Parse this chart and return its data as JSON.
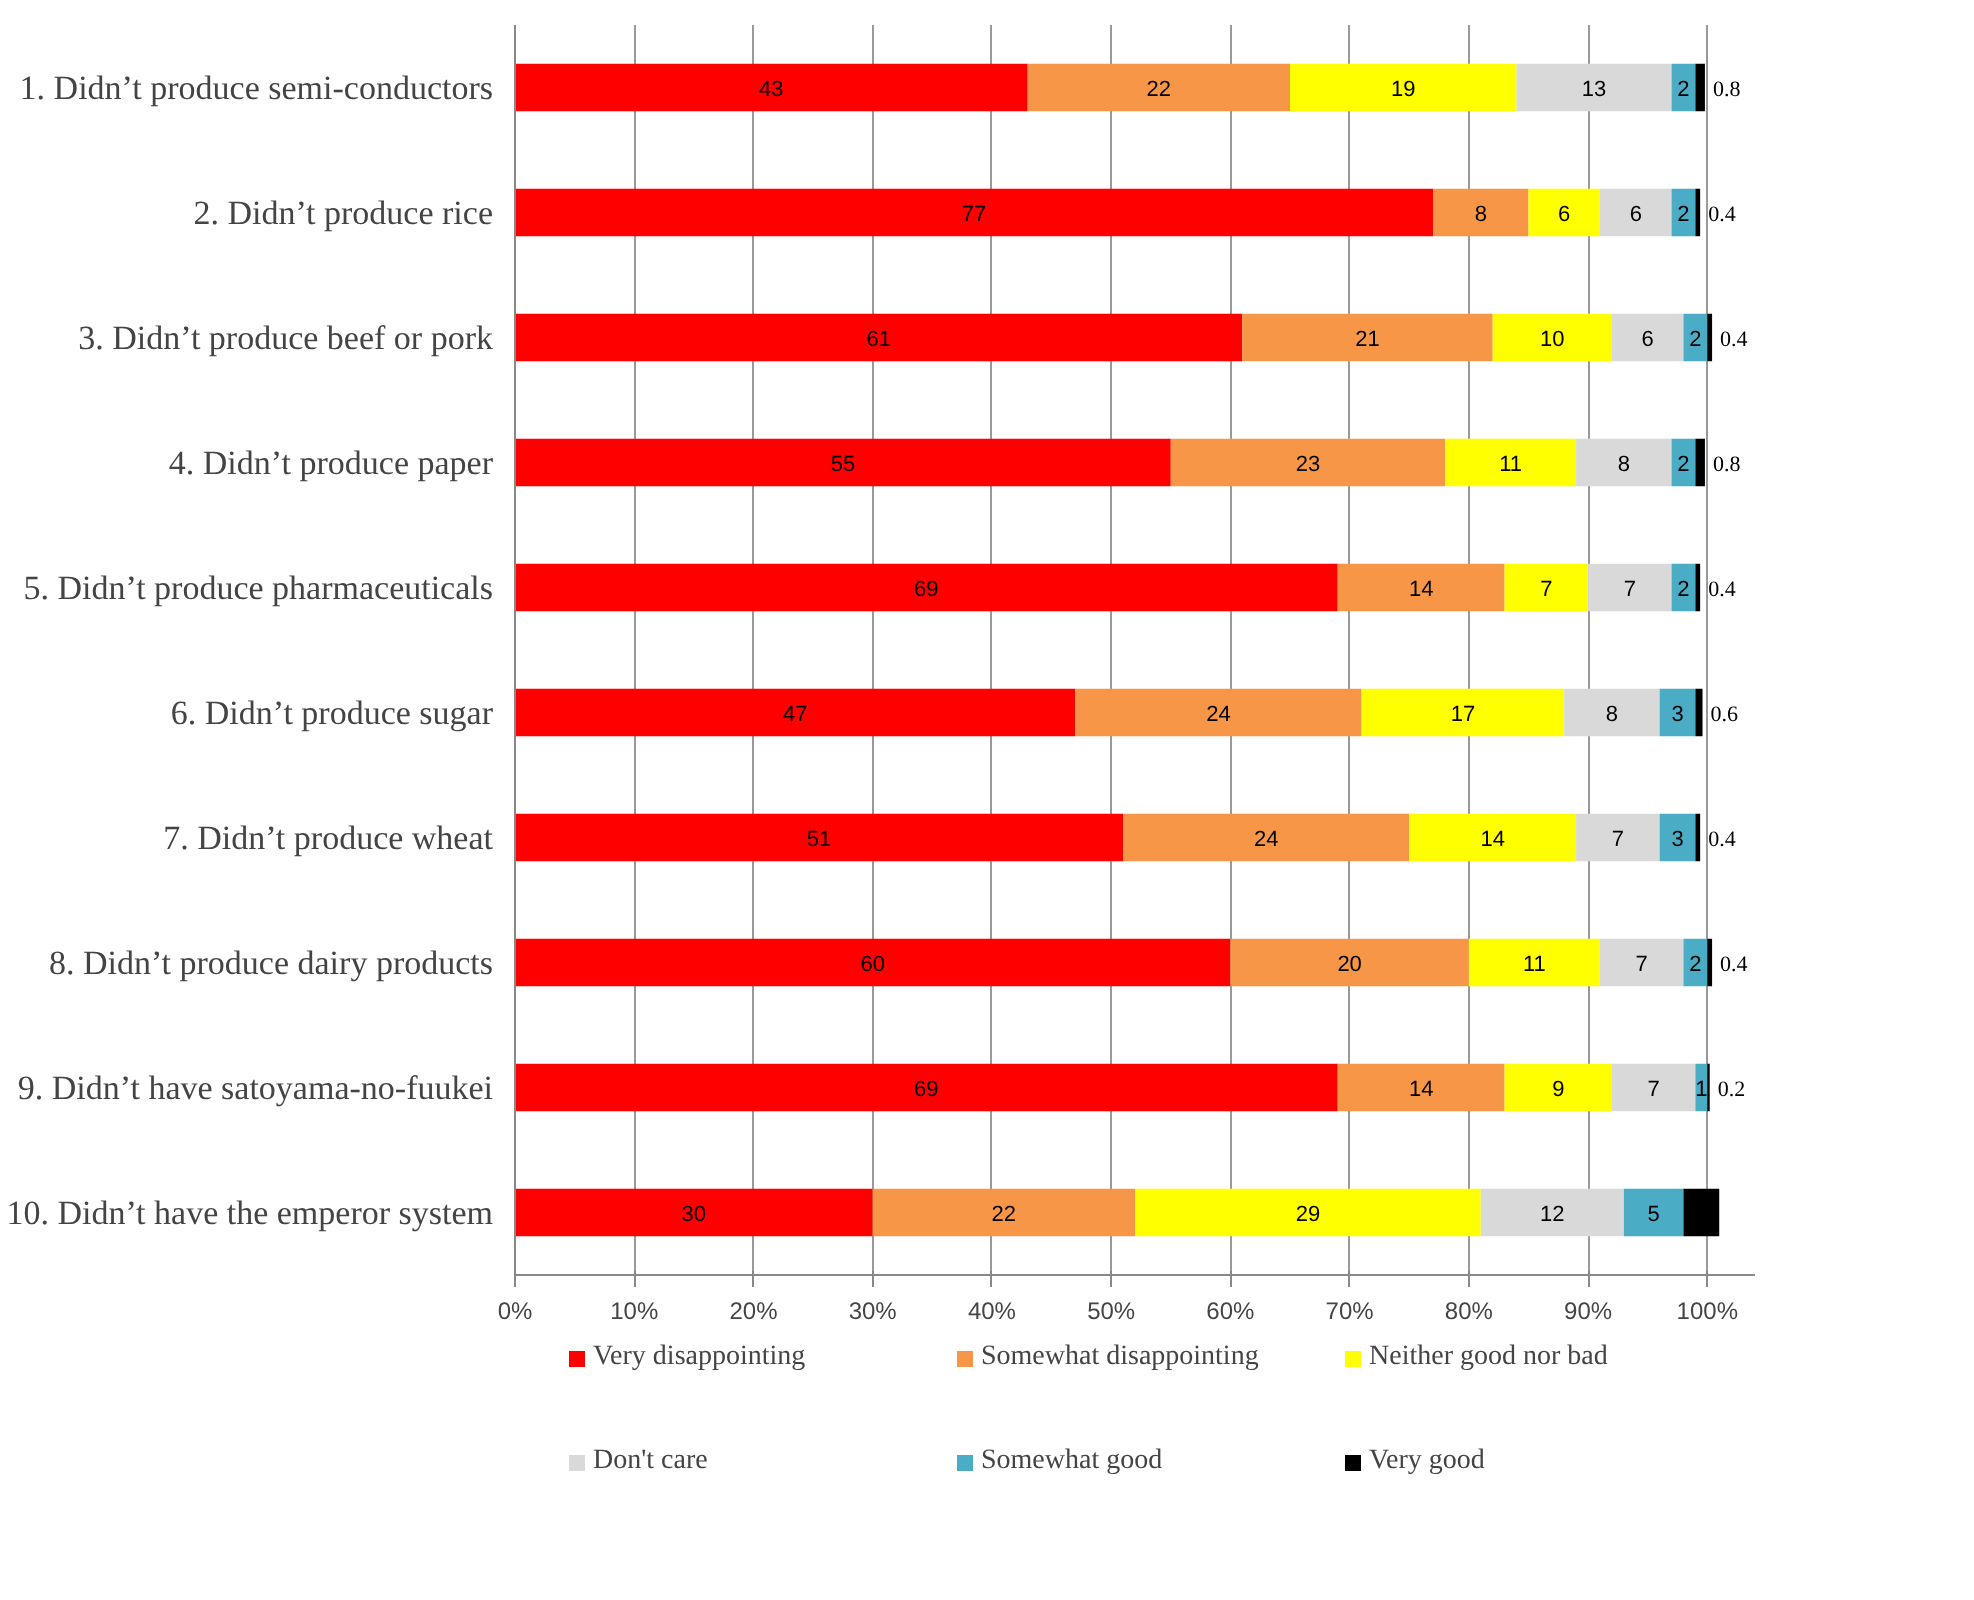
{
  "chart_data": {
    "type": "bar",
    "orientation": "horizontal",
    "stacked": true,
    "categories": [
      "1. Didn’t produce semi-conductors",
      "2. Didn’t produce rice",
      "3. Didn’t produce beef or pork",
      "4. Didn’t produce paper",
      "5. Didn’t produce pharmaceuticals",
      "6. Didn’t produce sugar",
      "7. Didn’t produce wheat",
      "8. Didn’t produce dairy products",
      "9. Didn’t have satoyama-no-fuukei",
      "10. Didn’t have the emperor system"
    ],
    "series": [
      {
        "name": "Very disappointing",
        "color": "#ff0000",
        "values": [
          43,
          77,
          61,
          55,
          69,
          47,
          51,
          60,
          69,
          30
        ],
        "value_labels": [
          "43",
          "77",
          "61",
          "55",
          "69",
          "47",
          "51",
          "60",
          "69",
          "30"
        ]
      },
      {
        "name": "Somewhat disappointing",
        "color": "#f79646",
        "values": [
          22,
          8,
          21,
          23,
          14,
          24,
          24,
          20,
          14,
          22
        ],
        "value_labels": [
          "22",
          "8",
          "21",
          "23",
          "14",
          "24",
          "24",
          "20",
          "14",
          "22"
        ]
      },
      {
        "name": "Neither good nor bad",
        "color": "#ffff00",
        "values": [
          19,
          6,
          10,
          11,
          7,
          17,
          14,
          11,
          9,
          29
        ],
        "value_labels": [
          "19",
          "6",
          "10",
          "11",
          "7",
          "17",
          "14",
          "11",
          "9",
          "29"
        ]
      },
      {
        "name": "Don't care",
        "color": "#d9d9d9",
        "values": [
          13,
          6,
          6,
          8,
          7,
          8,
          7,
          7,
          7,
          12
        ],
        "value_labels": [
          "13",
          "6",
          "6",
          "8",
          "7",
          "8",
          "7",
          "7",
          "7",
          "12"
        ]
      },
      {
        "name": "Somewhat good",
        "color": "#4bacc6",
        "values": [
          2,
          2,
          2,
          2,
          2,
          3,
          3,
          2,
          1,
          5
        ],
        "value_labels": [
          "2",
          "2",
          "2",
          "2",
          "2",
          "3",
          "3",
          "2",
          "1",
          "5"
        ]
      },
      {
        "name": "Very good",
        "color": "#000000",
        "values": [
          0.8,
          0.4,
          0.4,
          0.8,
          0.4,
          0.6,
          0.4,
          0.4,
          0.2,
          3
        ],
        "value_labels": [
          "0.8",
          "0.4",
          "0.4",
          "0.8",
          "0.4",
          "0.6",
          "0.4",
          "0.4",
          "0.2",
          null
        ]
      }
    ],
    "xlim": [
      0,
      104
    ],
    "xticks": [
      {
        "value": 0,
        "label": "0%"
      },
      {
        "value": 10,
        "label": "10%"
      },
      {
        "value": 20,
        "label": "20%"
      },
      {
        "value": 30,
        "label": "30%"
      },
      {
        "value": 40,
        "label": "40%"
      },
      {
        "value": 50,
        "label": "50%"
      },
      {
        "value": 60,
        "label": "60%"
      },
      {
        "value": 70,
        "label": "70%"
      },
      {
        "value": 80,
        "label": "80%"
      },
      {
        "value": 90,
        "label": "90%"
      },
      {
        "value": 100,
        "label": "100%"
      }
    ],
    "grid": "x",
    "legend": "bottom"
  }
}
